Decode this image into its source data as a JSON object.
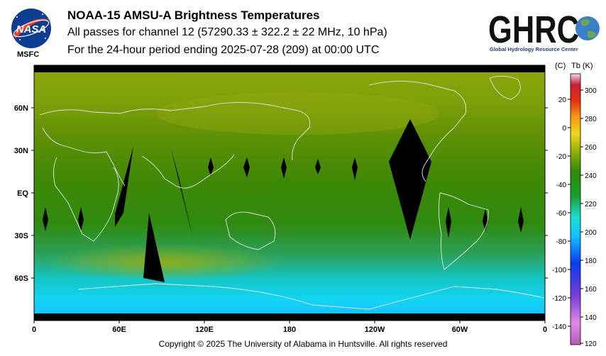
{
  "header": {
    "title": "NOAA-15 AMSU-A Brightness Temperatures",
    "line2": "All passes for channel 12 (57290.33 ± 322.2 ± 22 MHz, 10 hPa)",
    "line3": "For the 24-hour period ending 2025-07-28 (209) at 00:00 UTC"
  },
  "logos": {
    "nasa_text": "NASA",
    "msfc": "MSFC",
    "ghrc_text": "GHRC",
    "ghrc_subtitle": "Global Hydrology Resource Center"
  },
  "map": {
    "lat_labels": [
      "60N",
      "30N",
      "EQ",
      "30S",
      "60S"
    ],
    "lon_labels": [
      "0",
      "60E",
      "120E",
      "180",
      "120W",
      "60W",
      "0"
    ]
  },
  "colorbar": {
    "unit_c": "(C)",
    "unit_k": "Tb  (K)",
    "c_labels": [
      "20",
      "0",
      "-20",
      "-40",
      "-60",
      "-80",
      "-100",
      "-120",
      "-140"
    ],
    "k_labels": [
      "300",
      "280",
      "260",
      "240",
      "220",
      "200",
      "180",
      "160",
      "140",
      "120"
    ]
  },
  "footer": {
    "copyright": "Copyright © 2025 The University of Alabama in Huntsville.  All rights reserved"
  }
}
